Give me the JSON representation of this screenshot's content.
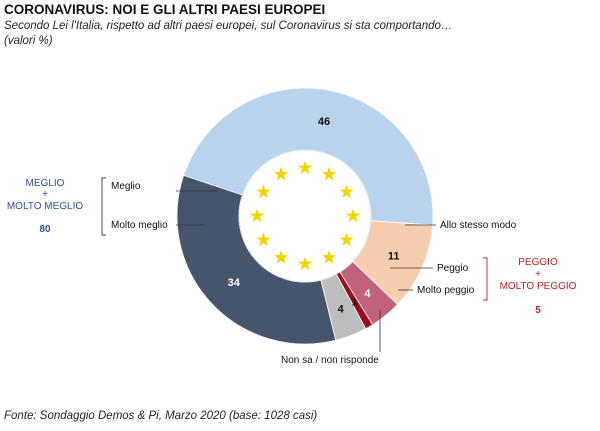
{
  "header": {
    "title": "CORONAVIRUS:  NOI E GLI ALTRI PAESI EUROPEI",
    "subtitle": "Secondo Lei l'Italia, rispetto ad altri paesi europei,  sul Coronavirus  si sta comportando…",
    "unit": "(valori %)"
  },
  "source": "Fonte: Sondaggio Demos & Pi, Marzo 2020 (base: 1028 casi)",
  "chart_data": {
    "type": "pie",
    "donut": true,
    "center_emblem": "eu-flag-stars",
    "series": [
      {
        "label": "Meglio",
        "value": 46,
        "value_label": "46",
        "color": "#b9d3ee"
      },
      {
        "label": "Allo stesso modo",
        "value": 11,
        "value_label": "11",
        "color": "#f7cdb0"
      },
      {
        "label": "Peggio",
        "value": 4,
        "value_label": "4",
        "color": "#c0637a"
      },
      {
        "label": "Molto peggio",
        "value": 1,
        "value_label": "1",
        "color": "#9b0d1d"
      },
      {
        "label": "Non sa / non risponde",
        "value": 4,
        "value_label": "4",
        "color": "#bdbdbd"
      },
      {
        "label": "Molto meglio",
        "value": 34,
        "value_label": "34",
        "color": "#45556c"
      }
    ],
    "groups": [
      {
        "label_line1": "MEGLIO",
        "label_plus": "+",
        "label_line2": "MOLTO MEGLIO",
        "total": "80",
        "color": "#2f4f8f"
      },
      {
        "label_line1": "PEGGIO",
        "label_plus": "+",
        "label_line2": "MOLTO PEGGIO",
        "total": "5",
        "color": "#b3202a"
      }
    ]
  }
}
